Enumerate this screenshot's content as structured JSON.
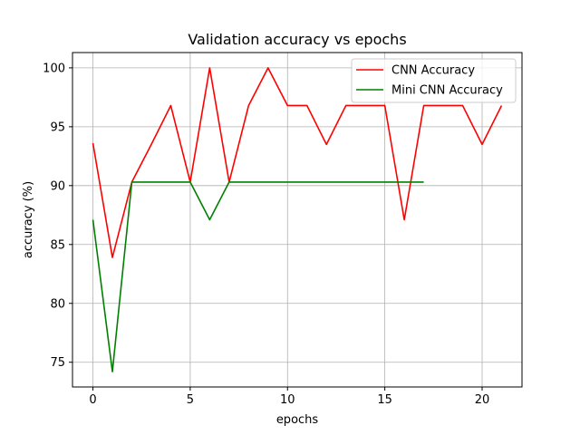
{
  "chart_data": {
    "type": "line",
    "title": "Validation accuracy vs epochs",
    "xlabel": "epochs",
    "ylabel": "accuracy (%)",
    "xlim": [
      -1.05,
      22.05
    ],
    "ylim": [
      72.9,
      101.3
    ],
    "xticks": [
      0,
      5,
      10,
      15,
      20
    ],
    "yticks": [
      75,
      80,
      85,
      90,
      95,
      100
    ],
    "grid": true,
    "legend_position": "top-right",
    "series": [
      {
        "name": "CNN Accuracy",
        "color": "#ff0000",
        "x": [
          0,
          1,
          2,
          3,
          4,
          5,
          6,
          7,
          8,
          9,
          10,
          11,
          12,
          13,
          14,
          15,
          16,
          17,
          18,
          19,
          20,
          21
        ],
        "values": [
          93.6,
          83.9,
          90.3,
          93.5,
          96.8,
          90.3,
          100,
          90.3,
          96.8,
          100,
          96.8,
          96.8,
          93.5,
          96.8,
          96.8,
          96.8,
          87.1,
          96.8,
          96.8,
          96.8,
          93.5,
          96.8
        ]
      },
      {
        "name": "Mini CNN Accuracy",
        "color": "#008000",
        "x": [
          0,
          1,
          2,
          3,
          4,
          5,
          6,
          7,
          8,
          9,
          10,
          11,
          12,
          13,
          14,
          15,
          16,
          17
        ],
        "values": [
          87.1,
          74.2,
          90.3,
          90.3,
          90.3,
          90.3,
          87.1,
          90.3,
          90.3,
          90.3,
          90.3,
          90.3,
          90.3,
          90.3,
          90.3,
          90.3,
          90.3,
          90.3
        ]
      }
    ]
  }
}
